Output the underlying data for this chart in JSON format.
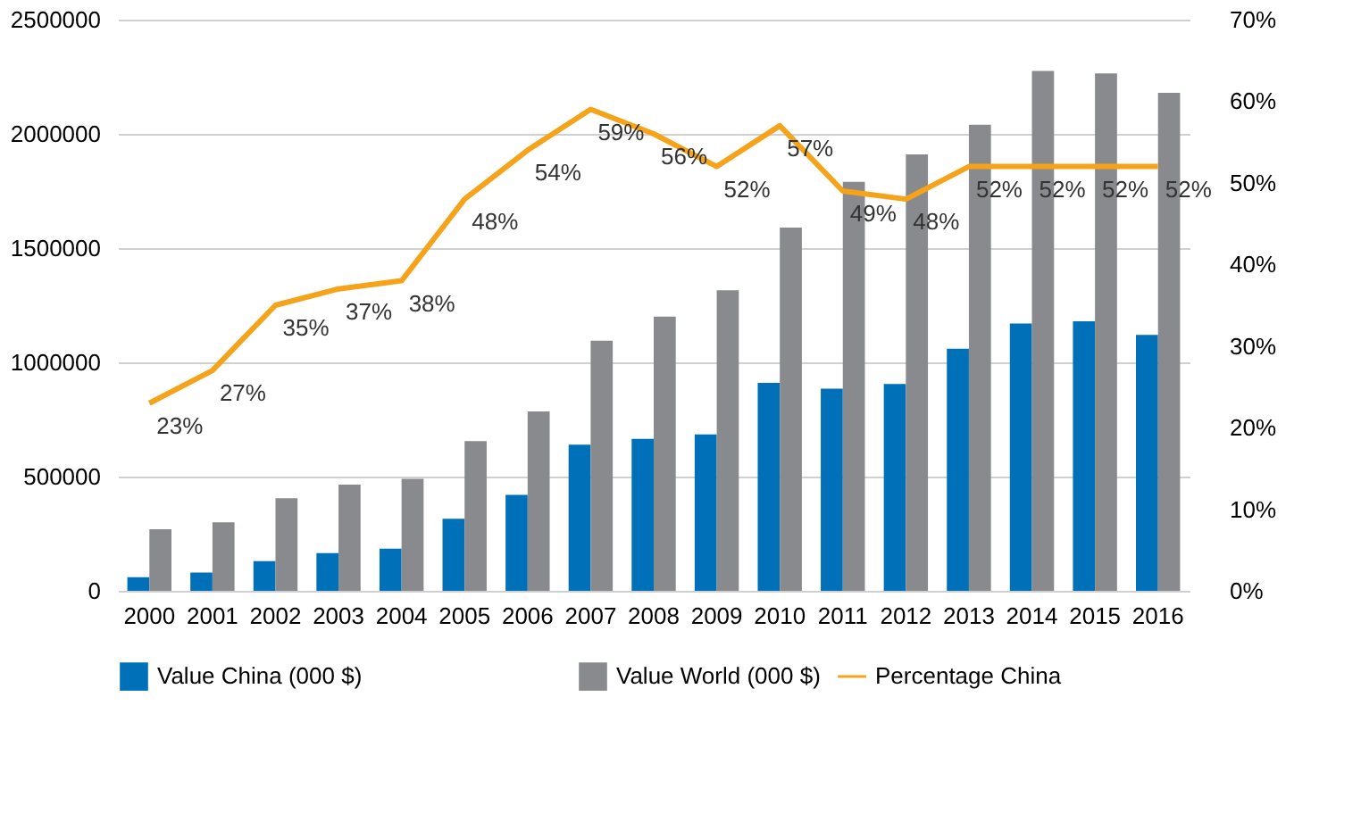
{
  "chart_data": {
    "type": "bar",
    "categories": [
      "2000",
      "2001",
      "2002",
      "2003",
      "2004",
      "2005",
      "2006",
      "2007",
      "2008",
      "2009",
      "2010",
      "2011",
      "2012",
      "2013",
      "2014",
      "2015",
      "2016"
    ],
    "series": [
      {
        "name": "Value China (000 $)",
        "color": "#0070b8",
        "values": [
          60000,
          80000,
          130000,
          165000,
          185000,
          315000,
          420000,
          640000,
          665000,
          685000,
          910000,
          885000,
          905000,
          1060000,
          1170000,
          1180000,
          1120000
        ]
      },
      {
        "name": "Value World (000 $)",
        "color": "#898a8d",
        "values": [
          270000,
          300000,
          405000,
          465000,
          490000,
          655000,
          785000,
          1095000,
          1200000,
          1315000,
          1590000,
          1790000,
          1910000,
          2040000,
          2275000,
          2265000,
          2180000
        ]
      },
      {
        "name": "Percentage China",
        "type": "line",
        "axis": "y2",
        "color": "#f5a31a",
        "values": [
          23,
          27,
          35,
          37,
          38,
          48,
          54,
          59,
          56,
          52,
          57,
          49,
          48,
          52,
          52,
          52,
          52
        ],
        "value_labels": [
          "23%",
          "27%",
          "35%",
          "37%",
          "38%",
          "48%",
          "54%",
          "59%",
          "56%",
          "52%",
          "57%",
          "49%",
          "48%",
          "52%",
          "52%",
          "52%",
          "52%"
        ]
      }
    ],
    "ylim": [
      0,
      2500000
    ],
    "yticks": [
      0,
      500000,
      1000000,
      1500000,
      2000000,
      2500000
    ],
    "y2lim": [
      0,
      70
    ],
    "y2ticks": [
      {
        "value": 0,
        "label": "0%"
      },
      {
        "value": 10,
        "label": "10%"
      },
      {
        "value": 20,
        "label": "20%"
      },
      {
        "value": 30,
        "label": "30%"
      },
      {
        "value": 40,
        "label": "40%"
      },
      {
        "value": 50,
        "label": "50%"
      },
      {
        "value": 60,
        "label": "60%"
      },
      {
        "value": 70,
        "label": "70%"
      }
    ],
    "grid": "y",
    "legend": "bottom",
    "marker": "none",
    "line_style": "solid"
  }
}
